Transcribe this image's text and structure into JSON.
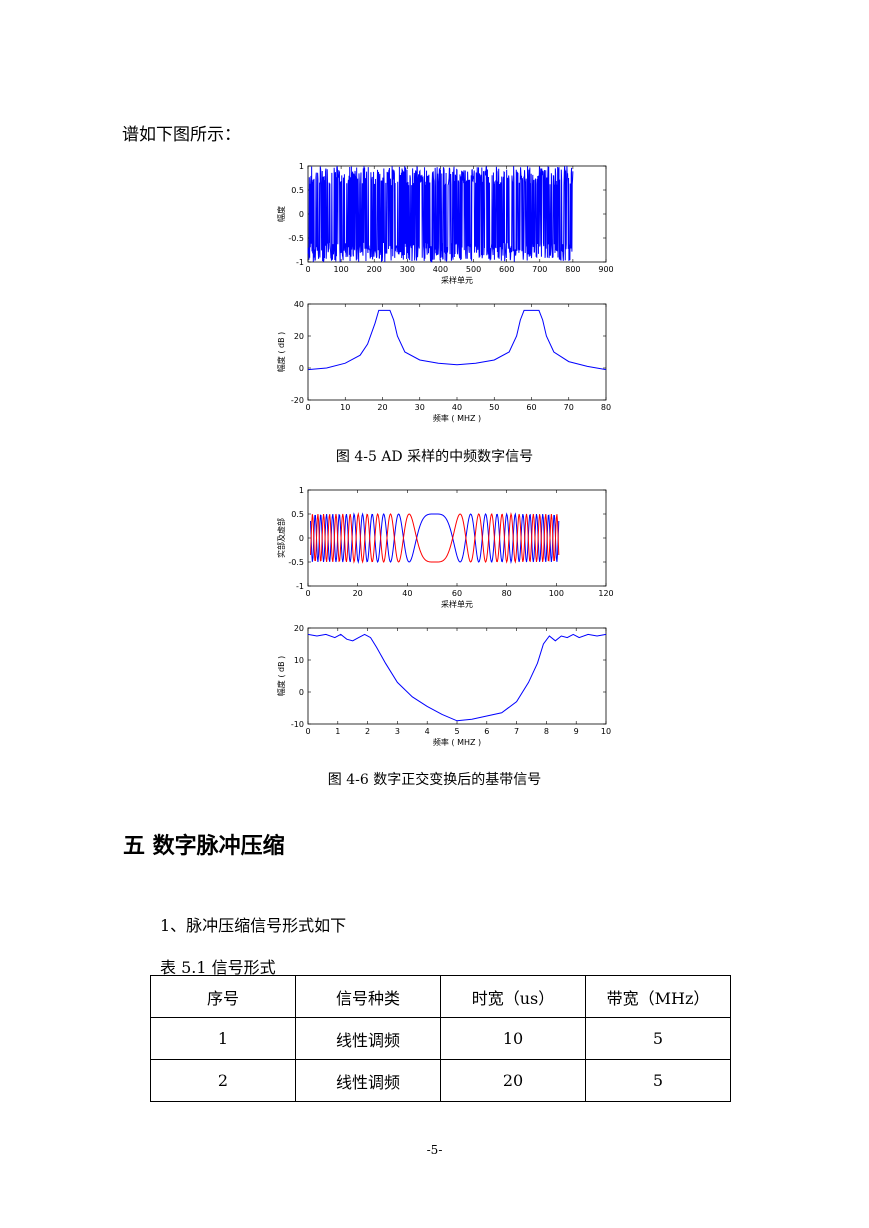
{
  "intro_text": "谱如下图所示：",
  "heading": "五  数字脉冲压缩",
  "subheading": "1、脉冲压缩信号形式如下",
  "table_caption": "表 5.1  信号形式",
  "figure_4_5_caption": "图 4-5    AD 采样的中频数字信号",
  "figure_4_6_caption": "图 4-6    数字正交变换后的基带信号",
  "table": {
    "headers": [
      "序号",
      "信号种类",
      "时宽（us）",
      "带宽（MHz）"
    ],
    "rows": [
      [
        "1",
        "线性调频",
        "10",
        "5"
      ],
      [
        "2",
        "线性调频",
        "20",
        "5"
      ]
    ]
  },
  "page_number": "-5-",
  "chart_data": [
    {
      "type": "line",
      "description_of_content": "dense oscillating sampled IF signal",
      "xlabel": "采样单元",
      "ylabel": "幅度",
      "xlim": [
        0,
        900
      ],
      "ylim": [
        -1,
        1
      ],
      "xticks": [
        "0",
        "100",
        "200",
        "300",
        "400",
        "500",
        "600",
        "700",
        "800",
        "900"
      ],
      "yticks": [
        "-1",
        "-0.5",
        "0",
        "0.5",
        "1"
      ],
      "series": [
        {
          "color": "#0000ff",
          "x_range": [
            0,
            800
          ],
          "amplitude": 1
        }
      ]
    },
    {
      "type": "line",
      "xlabel": "频率 ( MHZ )",
      "ylabel": "幅度 ( dB )",
      "xlim": [
        0,
        80
      ],
      "ylim": [
        -20,
        40
      ],
      "xticks": [
        "0",
        "10",
        "20",
        "30",
        "40",
        "50",
        "60",
        "70",
        "80"
      ],
      "yticks": [
        "-20",
        "0",
        "20",
        "40"
      ],
      "series": [
        {
          "color": "#0000ff",
          "x": [
            0,
            5,
            10,
            14,
            16,
            18,
            19,
            20,
            22,
            23,
            24,
            26,
            30,
            35,
            40,
            45,
            50,
            54,
            56,
            57,
            58,
            60,
            62,
            63,
            64,
            66,
            70,
            75,
            80
          ],
          "y": [
            -1,
            0,
            3,
            8,
            15,
            28,
            36,
            36,
            36,
            30,
            20,
            10,
            5,
            3,
            2,
            3,
            5,
            10,
            20,
            30,
            36,
            36,
            36,
            30,
            20,
            10,
            4,
            1,
            -1
          ]
        }
      ]
    },
    {
      "type": "line",
      "xlabel": "采样单元",
      "ylabel": "实部及虚部",
      "xlim": [
        0,
        120
      ],
      "ylim": [
        -1,
        1
      ],
      "xticks": [
        "0",
        "20",
        "40",
        "60",
        "80",
        "100",
        "120"
      ],
      "yticks": [
        "-1",
        "-0.5",
        "0",
        "0.5",
        "1"
      ],
      "series": [
        {
          "name_hidden": "real",
          "color": "#0000ff",
          "x_range": [
            1,
            101
          ]
        },
        {
          "name_hidden": "imag",
          "color": "#ff0000",
          "x_range": [
            1,
            101
          ]
        }
      ]
    },
    {
      "type": "line",
      "xlabel": "频率 ( MHZ )",
      "ylabel": "幅度 ( dB )",
      "xlim": [
        0,
        10
      ],
      "ylim": [
        -10,
        20
      ],
      "xticks": [
        "0",
        "1",
        "2",
        "3",
        "4",
        "5",
        "6",
        "7",
        "8",
        "9",
        "10"
      ],
      "yticks": [
        "-10",
        "0",
        "10",
        "20"
      ],
      "series": [
        {
          "color": "#0000ff",
          "x": [
            0,
            0.3,
            0.6,
            0.9,
            1.1,
            1.3,
            1.5,
            1.7,
            1.9,
            2.1,
            2.3,
            2.6,
            3,
            3.5,
            4,
            4.5,
            5,
            5.5,
            6,
            6.5,
            7,
            7.4,
            7.7,
            7.9,
            8.1,
            8.3,
            8.5,
            8.7,
            8.9,
            9.1,
            9.4,
            9.7,
            10
          ],
          "y": [
            18,
            17.5,
            18,
            17,
            18,
            16.5,
            16,
            17,
            18,
            17,
            14,
            9,
            3,
            -1.5,
            -4.5,
            -7,
            -9,
            -8.5,
            -7.5,
            -6.5,
            -3,
            3,
            9,
            15,
            17.5,
            16,
            17.5,
            17,
            18,
            17,
            18,
            17.5,
            18
          ]
        }
      ]
    }
  ]
}
